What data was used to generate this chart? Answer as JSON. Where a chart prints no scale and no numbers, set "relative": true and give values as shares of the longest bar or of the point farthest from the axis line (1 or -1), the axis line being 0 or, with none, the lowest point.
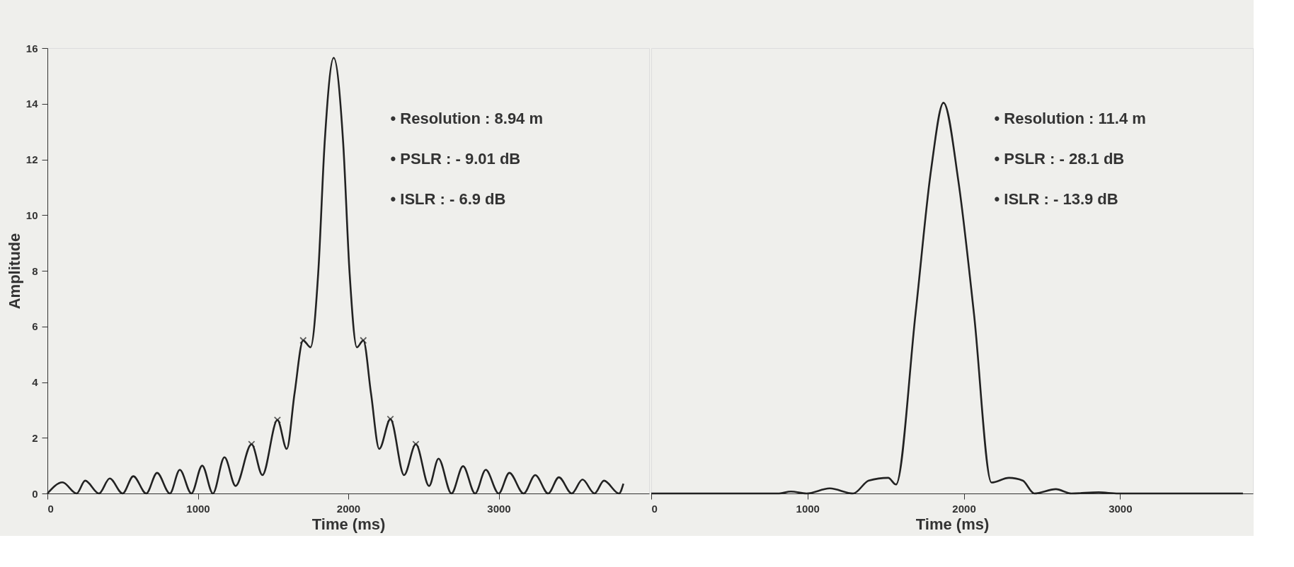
{
  "chart_data": [
    {
      "type": "line",
      "xlabel": "Time (ms)",
      "ylabel": "Amplitude",
      "xlim": [
        0,
        4000
      ],
      "xticks": [
        0,
        1000,
        2000,
        3000
      ],
      "ylim": [
        0,
        16
      ],
      "yticks": [
        0,
        2,
        4,
        6,
        8,
        10,
        12,
        14,
        16
      ],
      "grid": false,
      "legend": false,
      "annotations": [
        "• Resolution : 8.94 m",
        "• PSLR : - 9.01 dB",
        "• ISLR : - 6.9 dB"
      ],
      "series": [
        {
          "color": "#222222",
          "marker": "none",
          "x": [
            0,
            100,
            194,
            251,
            343,
            414,
            500,
            571,
            657,
            729,
            814,
            880,
            957,
            1029,
            1100,
            1177,
            1251,
            1357,
            1429,
            1529,
            1591,
            1643,
            1700,
            1749,
            1800,
            1843,
            1903,
            1966,
            2009,
            2057,
            2100,
            2151,
            2206,
            2280,
            2371,
            2449,
            2537,
            2600,
            2686,
            2763,
            2843,
            2914,
            3000,
            3071,
            3166,
            3243,
            3329,
            3400,
            3486,
            3557,
            3637,
            3700,
            3800,
            3829
          ],
          "values": [
            0,
            0.4,
            0,
            0.46,
            0,
            0.54,
            0,
            0.62,
            0,
            0.74,
            0,
            0.85,
            0,
            1.0,
            0,
            1.3,
            0.27,
            1.77,
            0.66,
            2.64,
            1.6,
            3.6,
            5.5,
            5.25,
            7.9,
            12.6,
            15.65,
            12.6,
            7.9,
            5.25,
            5.5,
            3.6,
            1.6,
            2.67,
            0.66,
            1.77,
            0.27,
            1.25,
            0,
            0.98,
            0,
            0.85,
            0,
            0.74,
            0,
            0.66,
            0,
            0.58,
            0,
            0.5,
            0,
            0.46,
            0,
            0.35
          ]
        },
        {
          "type": "scatter",
          "color": "#222222",
          "marker": "cross",
          "x": [
            1357,
            1529,
            1700,
            2100,
            2280,
            2449
          ],
          "values": [
            1.77,
            2.64,
            5.5,
            5.5,
            2.67,
            1.77
          ]
        }
      ]
    },
    {
      "type": "line",
      "xlabel": "Time (ms)",
      "relative": true,
      "xlim": [
        0,
        3850
      ],
      "xticks": [
        0,
        1000,
        2000,
        3000
      ],
      "grid": false,
      "legend": false,
      "annotations": [
        "• Resolution : 11.4 m",
        "• PSLR : - 28.1 dB",
        "• ISLR : - 13.9 dB"
      ],
      "series": [
        {
          "color": "#222222",
          "marker": "none",
          "x": [
            0,
            818,
            893,
            993,
            1142,
            1292,
            1392,
            1516,
            1566,
            1691,
            1791,
            1870,
            1965,
            2065,
            2177,
            2289,
            2377,
            2451,
            2589,
            2688,
            2863,
            2988,
            3786
          ],
          "values": [
            0,
            0,
            0.005,
            0,
            0.013,
            0,
            0.033,
            0.04,
            0.023,
            0.46,
            0.83,
            1,
            0.8,
            0.46,
            0.028,
            0.04,
            0.033,
            0,
            0.011,
            0,
            0.003,
            0,
            0
          ]
        }
      ]
    }
  ]
}
